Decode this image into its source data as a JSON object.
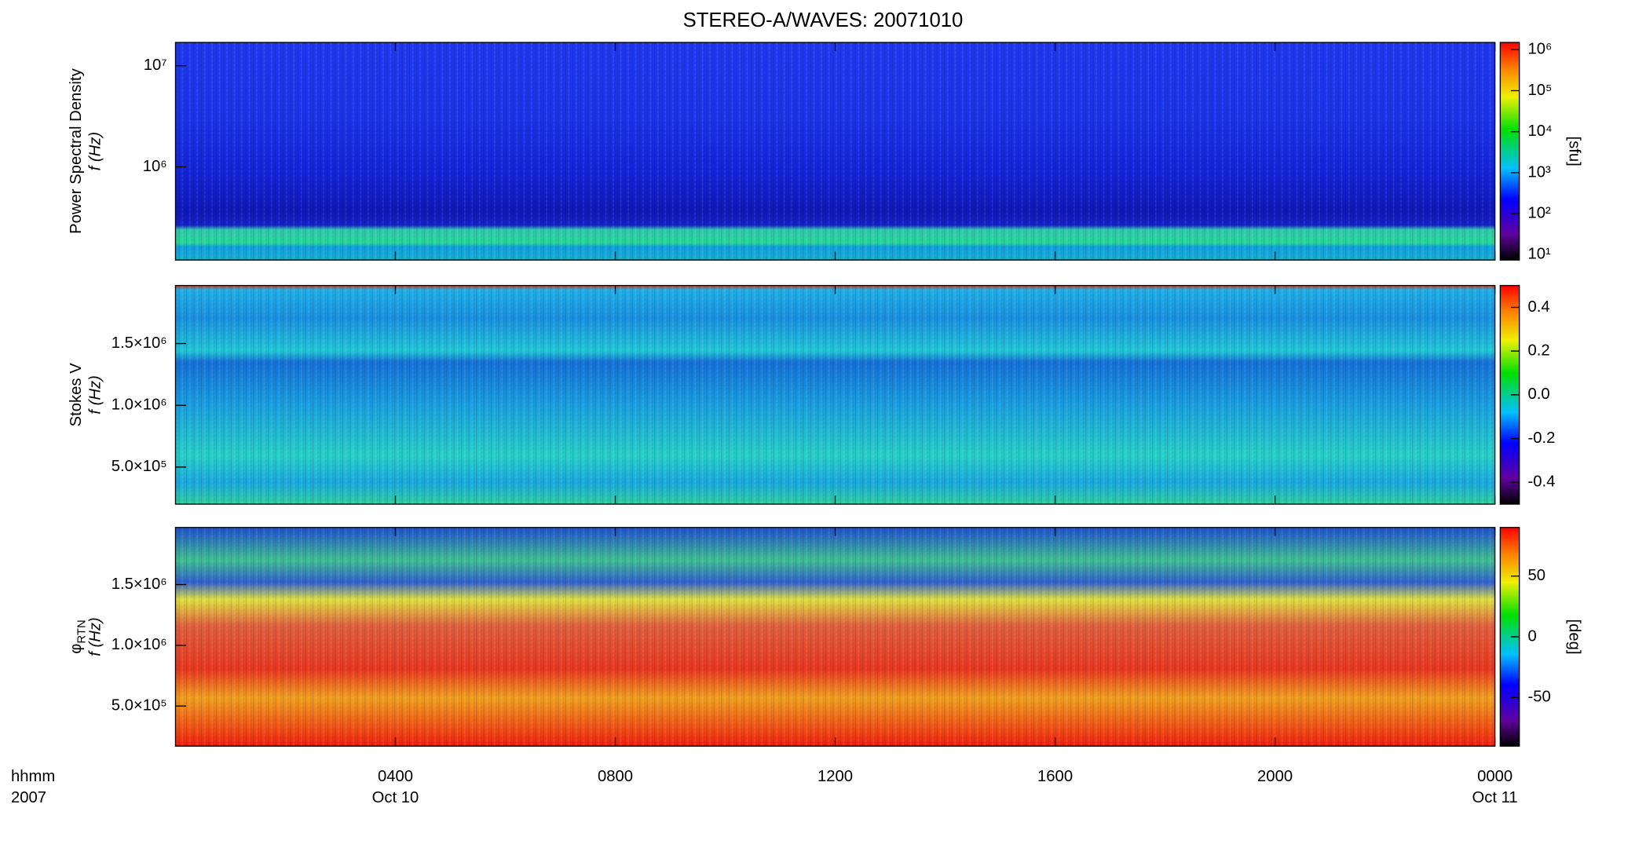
{
  "figure": {
    "title": "STEREO-A/WAVES: 20071010",
    "xlim": [
      0,
      24
    ],
    "xticks": [
      {
        "value": 4,
        "label": "0400"
      },
      {
        "value": 8,
        "label": "0800"
      },
      {
        "value": 12,
        "label": "1200"
      },
      {
        "value": 16,
        "label": "1600"
      },
      {
        "value": 20,
        "label": "2000"
      },
      {
        "value": 24,
        "label": "0000"
      }
    ],
    "date_labels": [
      {
        "value": 4,
        "label": "Oct 10"
      },
      {
        "value": 24,
        "label": "Oct 11"
      }
    ],
    "x_label": [
      "hhmm",
      "2007"
    ]
  },
  "chart_data": [
    {
      "type": "spectrogram",
      "ylabel": [
        "Power Spectral Density",
        "f (Hz)"
      ],
      "ylog": true,
      "ylim": [
        120000,
        17000000
      ],
      "yticks": [
        {
          "value": 1000000,
          "label": "10⁶"
        },
        {
          "value": 10000000,
          "label": "10⁷"
        }
      ],
      "colorbar": {
        "label": "[sfu]",
        "log": true,
        "lim": [
          7.4,
          1500000
        ],
        "ticks": [
          {
            "value": 10,
            "label": "10¹"
          },
          {
            "value": 100,
            "label": "10²"
          },
          {
            "value": 1000,
            "label": "10³"
          },
          {
            "value": 10000,
            "label": "10⁴"
          },
          {
            "value": 100000,
            "label": "10⁵"
          },
          {
            "value": 1000000,
            "label": "10⁶"
          }
        ]
      }
    },
    {
      "type": "spectrogram",
      "ylabel": [
        "Stokes V",
        "f (Hz)"
      ],
      "ylog": false,
      "ylim": [
        200000,
        1970000
      ],
      "yticks": [
        {
          "value": 500000,
          "label": "5.0×10⁵"
        },
        {
          "value": 1000000,
          "label": "1.0×10⁶"
        },
        {
          "value": 1500000,
          "label": "1.5×10⁶"
        }
      ],
      "colorbar": {
        "log": false,
        "lim": [
          -0.5,
          0.5
        ],
        "ticks": [
          {
            "value": -0.4,
            "label": "-0.4"
          },
          {
            "value": -0.2,
            "label": "-0.2"
          },
          {
            "value": 0,
            "label": "0.0"
          },
          0.2,
          0.4
        ]
      }
    },
    {
      "type": "spectrogram",
      "ylabel": [
        "φ",
        "f (Hz)"
      ],
      "ylabel_subscript": "RTN",
      "ylog": false,
      "ylim": [
        170000,
        1970000
      ],
      "yticks": [
        {
          "value": 500000,
          "label": "5.0×10⁵"
        },
        {
          "value": 1000000,
          "label": "1.0×10⁶"
        },
        {
          "value": 1500000,
          "label": "1.5×10⁶"
        }
      ],
      "colorbar": {
        "label": "[deg]",
        "log": false,
        "lim": [
          -90,
          90
        ],
        "ticks": [
          -50,
          0,
          50
        ]
      }
    }
  ]
}
